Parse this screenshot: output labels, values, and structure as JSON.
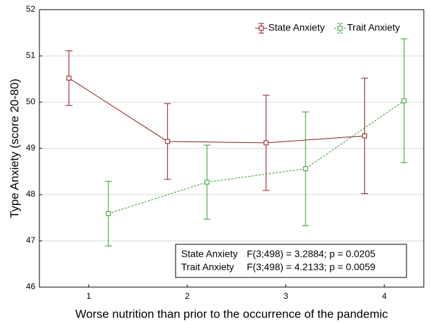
{
  "chart_data": {
    "type": "errorline",
    "xlabel": "Worse nutrition than prior to the occurrence of the pandemic",
    "ylabel": "Type Anxiety (score 20-80)",
    "xlim": [
      0.5,
      4.4
    ],
    "xticks": [
      1,
      2,
      3,
      4
    ],
    "ylim": [
      46,
      52
    ],
    "yticks": [
      46,
      47,
      48,
      49,
      50,
      51,
      52
    ],
    "grid": true,
    "legend": "upper right",
    "series": [
      {
        "name": "State Anxiety",
        "color": "#8b1a1a",
        "dash": false,
        "x": [
          0.8,
          1.8,
          2.8,
          3.8
        ],
        "values": [
          50.52,
          49.15,
          49.12,
          49.27
        ],
        "errors": [
          0.59,
          0.82,
          1.03,
          1.25
        ]
      },
      {
        "name": "Trait Anxiety",
        "color": "#2e9e2e",
        "dash": true,
        "x": [
          1.2,
          2.2,
          3.2,
          4.2
        ],
        "values": [
          47.59,
          48.27,
          48.56,
          50.03
        ],
        "errors": [
          0.7,
          0.8,
          1.23,
          1.34
        ]
      }
    ],
    "annotations": [
      {
        "label": "State Anxiety",
        "text": "F(3;498) = 3.2884; p = 0.0205"
      },
      {
        "label": "Trait Anxiety",
        "text": "F(3;498) = 4.2133; p = 0.0059"
      }
    ]
  }
}
